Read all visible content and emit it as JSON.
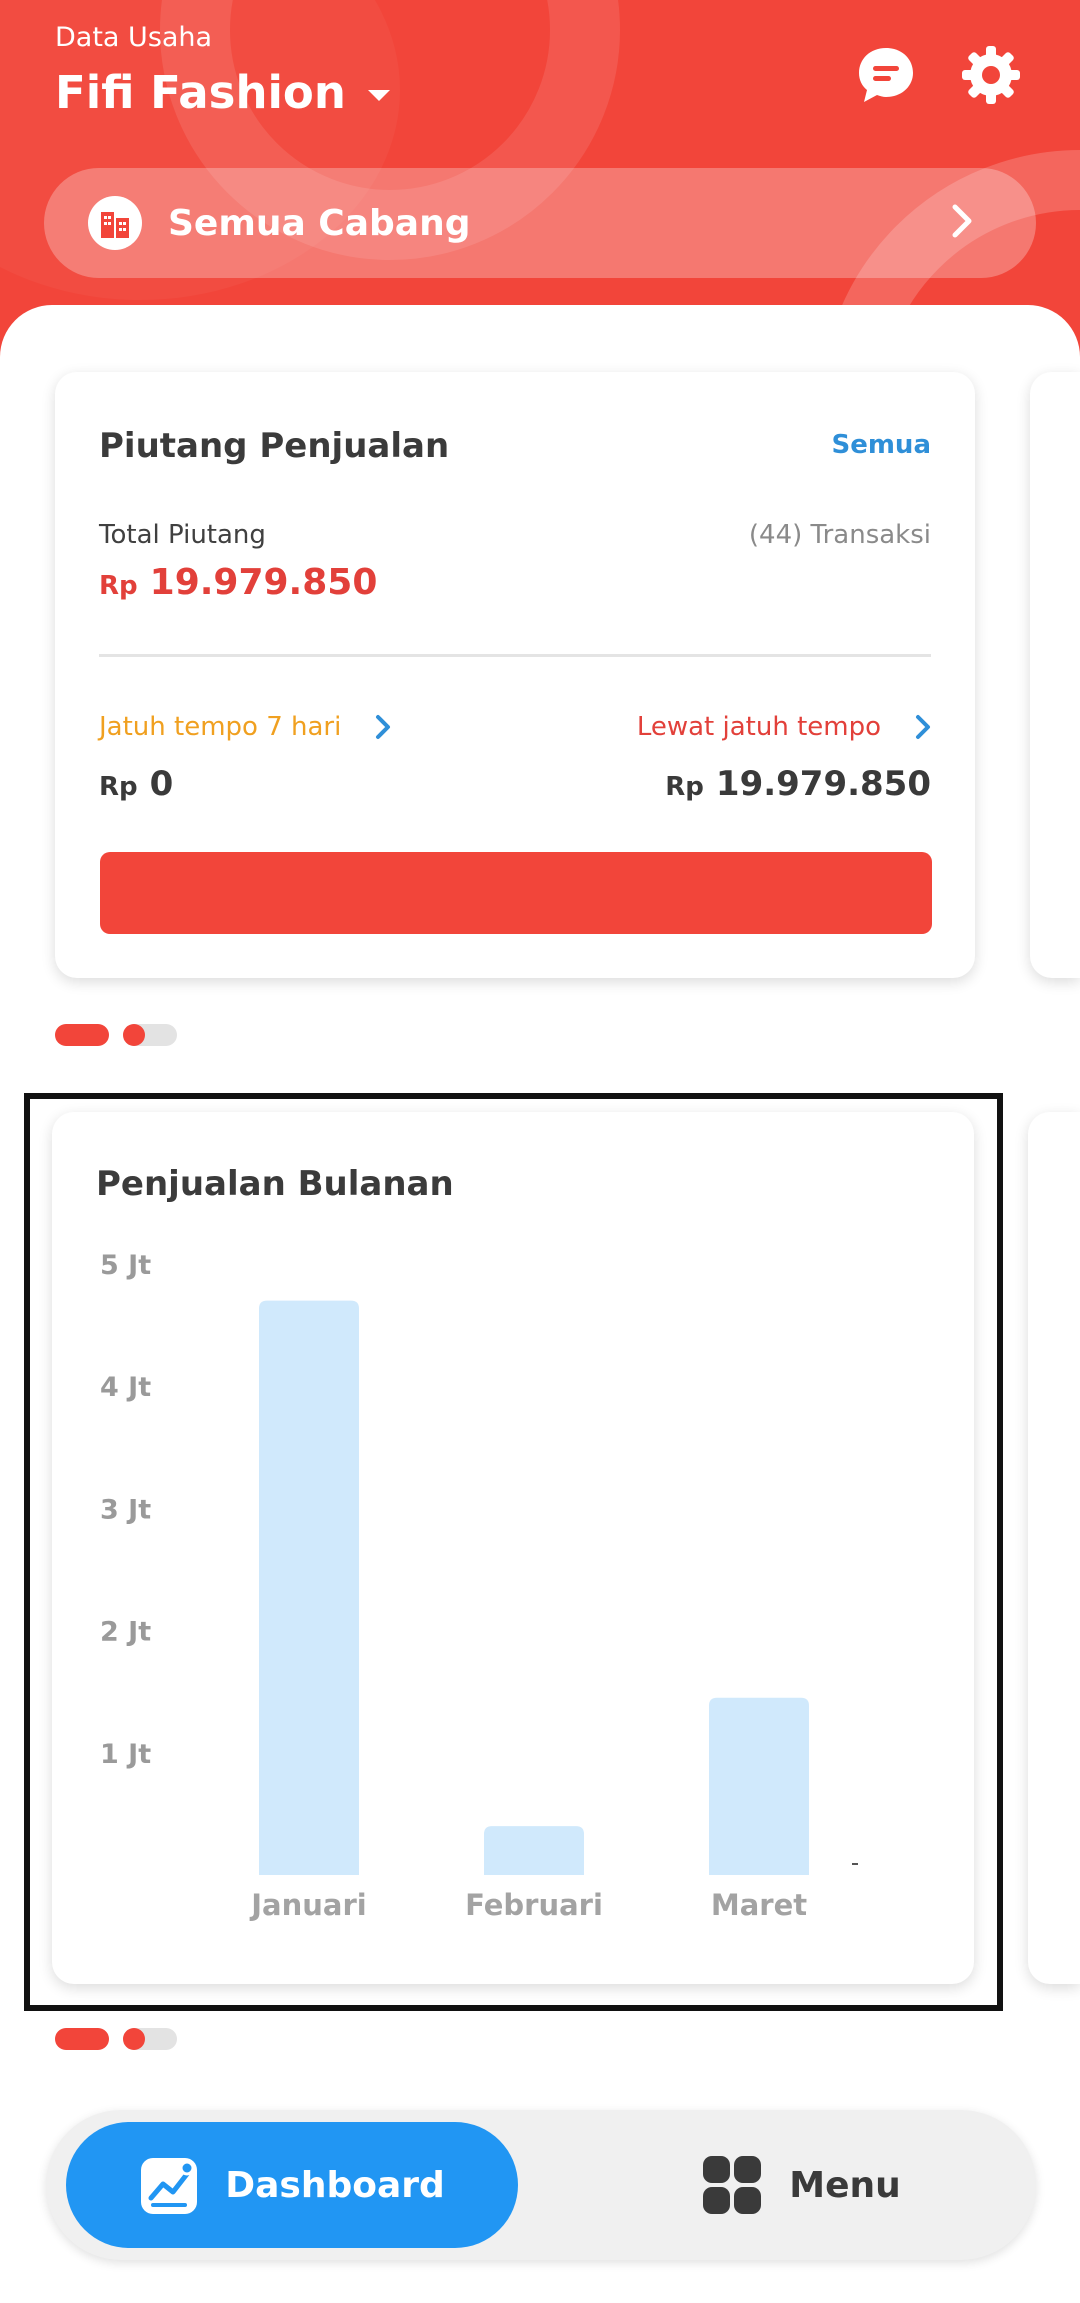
{
  "header": {
    "business_label": "Data Usaha",
    "business_name": "Fifi Fashion",
    "branch_label": "Semua Cabang"
  },
  "receivables_card": {
    "title": "Piutang Penjualan",
    "see_all": "Semua",
    "total_label": "Total Piutang",
    "transactions": "(44) Transaksi",
    "currency": "Rp",
    "total_amount": "19.979.850",
    "due_soon_label": "Jatuh tempo 7 hari",
    "due_soon_amount": "0",
    "overdue_label": "Lewat jatuh tempo",
    "overdue_amount": "19.979.850",
    "overdue_fraction": 1.0
  },
  "sales_card": {
    "title": "Penjualan Bulanan"
  },
  "chart_data": {
    "type": "bar",
    "title": "Penjualan Bulanan",
    "categories": [
      "Januari",
      "Februari",
      "Maret"
    ],
    "values": [
      4700000,
      400000,
      1450000
    ],
    "y_ticks": [
      "1 Jt",
      "2 Jt",
      "3 Jt",
      "4 Jt",
      "5 Jt"
    ],
    "ylim": [
      0,
      5000000
    ],
    "bar_color": "#d0e9fc",
    "grid": false
  },
  "bottom_nav": {
    "dashboard_label": "Dashboard",
    "menu_label": "Menu"
  },
  "colors": {
    "brand_red": "#f2453a",
    "accent_blue": "#2196f3",
    "link_blue": "#2f8fd8",
    "warning_orange": "#f0a020"
  },
  "icons": [
    "chat-icon",
    "gear-icon",
    "building-icon",
    "chevron-right-icon",
    "dashboard-chart-icon",
    "menu-grid-icon"
  ]
}
